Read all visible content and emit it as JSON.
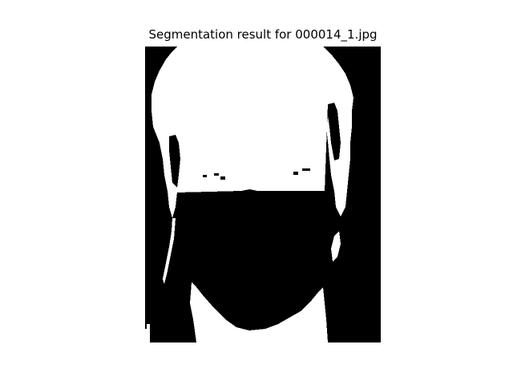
{
  "figure": {
    "title": "Segmentation result for 000014_1.jpg"
  },
  "image": {
    "type": "binary-segmentation-mask",
    "colors": {
      "foreground": "#ffffff",
      "background": "#000000"
    }
  }
}
